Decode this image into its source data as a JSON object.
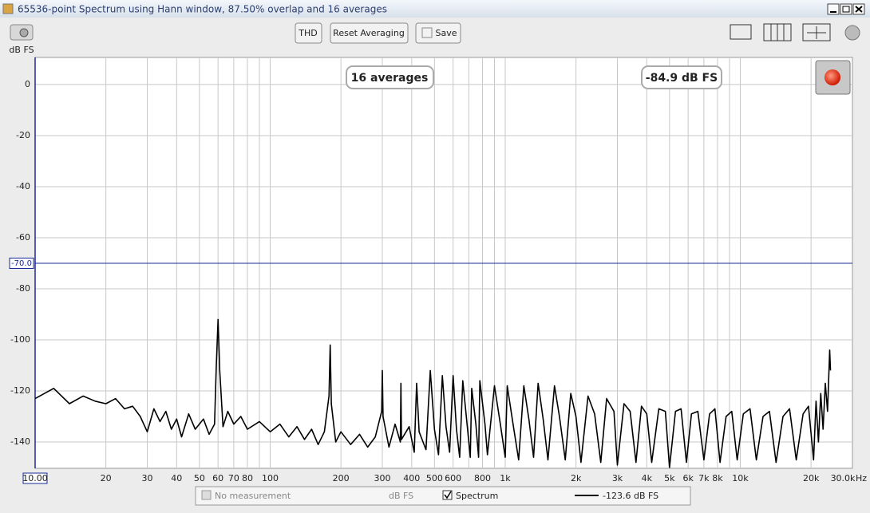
{
  "window": {
    "title": "65536-point Spectrum using Hann window, 87.50% overlap and 16 averages"
  },
  "toolbar": {
    "buttons": [
      "THD",
      "Reset Averaging",
      "Save"
    ]
  },
  "chart_data": {
    "type": "line",
    "ylabel": "dB FS",
    "xlabel": "Hz",
    "log_x": true,
    "grid": true,
    "xlim": [
      10,
      30000
    ],
    "ylim": [
      -150.3,
      10.6
    ],
    "yticks": [
      0,
      -20,
      -40,
      -60,
      -80,
      -100,
      -120,
      -140
    ],
    "xticks": [
      {
        "value": 10,
        "label": "10.00"
      },
      20,
      30,
      40,
      50,
      60,
      70,
      80,
      100,
      200,
      300,
      400,
      500,
      600,
      800,
      {
        "value": 1000,
        "label": "1k"
      },
      {
        "value": 2000,
        "label": "2k"
      },
      {
        "value": 3000,
        "label": "3k"
      },
      {
        "value": 4000,
        "label": "4k"
      },
      {
        "value": 5000,
        "label": "5k"
      },
      {
        "value": 6000,
        "label": "6k"
      },
      {
        "value": 7000,
        "label": "7k"
      },
      {
        "value": 8000,
        "label": "8k"
      },
      {
        "value": 10000,
        "label": "10k"
      },
      {
        "value": 20000,
        "label": "20k"
      },
      {
        "value": 30000,
        "label": "30.0k"
      }
    ],
    "x_minor_grid": [
      90,
      700,
      900,
      9000
    ],
    "cursor_line": {
      "value": -70,
      "label": "-70.0"
    },
    "annotations": [
      "16 averages",
      "-84.9 dB FS"
    ],
    "x": [
      10,
      12,
      14,
      16,
      18,
      20,
      22,
      24,
      26,
      28,
      30,
      32,
      34,
      36,
      38,
      40,
      42,
      45,
      48,
      52,
      55,
      58,
      59,
      60,
      61,
      63,
      66,
      70,
      75,
      80,
      90,
      100,
      110,
      120,
      130,
      140,
      150,
      160,
      170,
      178,
      180,
      182,
      190,
      200,
      220,
      240,
      260,
      280,
      298,
      300,
      302,
      320,
      340,
      358,
      360,
      362,
      390,
      410,
      420,
      430,
      460,
      480,
      500,
      520,
      540,
      560,
      580,
      600,
      620,
      640,
      660,
      690,
      710,
      720,
      750,
      770,
      780,
      820,
      840,
      900,
      950,
      1000,
      1020,
      1080,
      1140,
      1200,
      1260,
      1320,
      1380,
      1450,
      1520,
      1620,
      1700,
      1800,
      1900,
      2000,
      2100,
      2250,
      2400,
      2550,
      2700,
      2900,
      3000,
      3200,
      3400,
      3600,
      3800,
      4000,
      4200,
      4500,
      4800,
      5000,
      5300,
      5600,
      5900,
      6200,
      6600,
      7000,
      7400,
      7800,
      8200,
      8700,
      9200,
      9700,
      10300,
      11000,
      11700,
      12500,
      13300,
      14200,
      15200,
      16200,
      17300,
      18500,
      19500,
      20500,
      21000,
      21500,
      22000,
      22500,
      23000,
      23500,
      24000,
      24200
    ],
    "series": [
      {
        "name": "Spectrum",
        "color": "#000000",
        "readout": "-123.6 dB FS",
        "values": [
          -123,
          -119,
          -125,
          -122,
          -124,
          -125,
          -123,
          -127,
          -126,
          -130,
          -136,
          -127,
          -132,
          -128,
          -135,
          -131,
          -138,
          -129,
          -135,
          -131,
          -137,
          -133,
          -110,
          -92,
          -112,
          -134,
          -128,
          -133,
          -130,
          -135,
          -132,
          -136,
          -133,
          -138,
          -134,
          -139,
          -135,
          -141,
          -136,
          -122,
          -102,
          -125,
          -140,
          -136,
          -141,
          -137,
          -142,
          -138,
          -128,
          -112,
          -130,
          -142,
          -133,
          -140,
          -117,
          -139,
          -134,
          -144,
          -117,
          -136,
          -143,
          -112,
          -135,
          -145,
          -114,
          -134,
          -144,
          -114,
          -135,
          -146,
          -116,
          -134,
          -146,
          -119,
          -133,
          -146,
          -116,
          -133,
          -145,
          -118,
          -132,
          -146,
          -118,
          -133,
          -147,
          -118,
          -131,
          -146,
          -117,
          -131,
          -147,
          -118,
          -130,
          -147,
          -121,
          -130,
          -148,
          -122,
          -129,
          -148,
          -123,
          -128,
          -149,
          -125,
          -128,
          -148,
          -126,
          -129,
          -148,
          -127,
          -128,
          -150,
          -128,
          -127,
          -148,
          -129,
          -128,
          -147,
          -129,
          -127,
          -148,
          -130,
          -128,
          -147,
          -129,
          -127,
          -147,
          -130,
          -128,
          -148,
          -130,
          -127,
          -147,
          -129,
          -126,
          -147,
          -124,
          -140,
          -121,
          -135,
          -117,
          -128,
          -104,
          -112
        ]
      }
    ],
    "inactive_legend": {
      "name": "No measurement",
      "unit": "dB FS"
    }
  }
}
